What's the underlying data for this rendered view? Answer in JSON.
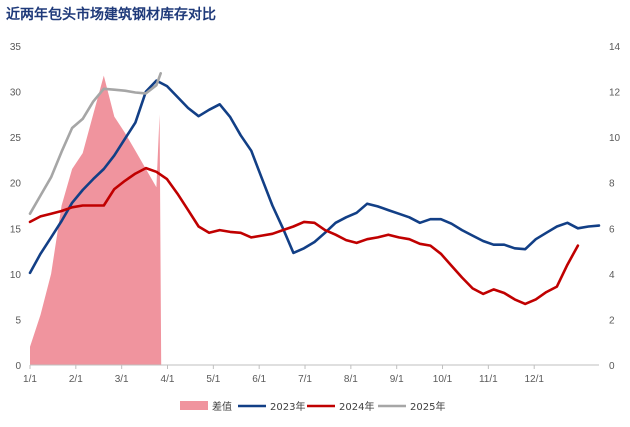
{
  "chart_data": {
    "type": "line",
    "title": "近两年包头市场建筑钢材库存对比",
    "x_tick_labels": [
      "1/1",
      "2/1",
      "3/1",
      "4/1",
      "5/1",
      "6/1",
      "7/1",
      "8/1",
      "9/1",
      "10/1",
      "11/1",
      "12/1"
    ],
    "ylim": [
      0,
      35
    ],
    "yticks": [
      0,
      5,
      10,
      15,
      20,
      25,
      30,
      35
    ],
    "y2lim": [
      0,
      14
    ],
    "y2ticks": [
      0,
      2,
      4,
      6,
      8,
      10,
      12,
      14
    ],
    "grid": false,
    "legend_position": "bottom",
    "x_unit": "week",
    "series": [
      {
        "name": "差值",
        "kind": "area",
        "axis": "right",
        "color": "#f0949e",
        "x": [
          0,
          1,
          2,
          3,
          4,
          5,
          6,
          7,
          8,
          9,
          10,
          11,
          12,
          12.3,
          12.45
        ],
        "values": [
          0.8,
          2.2,
          4.0,
          7.0,
          8.6,
          9.3,
          11.0,
          12.7,
          10.9,
          10.2,
          9.4,
          8.6,
          7.8,
          11.0,
          0
        ]
      },
      {
        "name": "2023年",
        "kind": "line",
        "axis": "left",
        "color": "#123f86",
        "x": [
          0,
          1,
          2,
          3,
          4,
          5,
          6,
          7,
          8,
          9,
          10,
          11,
          12,
          13,
          14,
          15,
          16,
          17,
          18,
          19,
          20,
          21,
          22,
          23,
          24,
          25,
          26,
          27,
          28,
          29,
          30,
          31,
          32,
          33,
          34,
          35,
          36,
          37,
          38,
          39,
          40,
          41,
          42,
          43,
          44,
          45,
          46,
          47,
          48,
          49,
          50,
          51,
          52,
          53,
          54
        ],
        "values": [
          10.1,
          12.2,
          14.0,
          15.8,
          17.8,
          19.2,
          20.4,
          21.5,
          23.0,
          24.8,
          26.6,
          30.0,
          31.2,
          30.6,
          29.4,
          28.2,
          27.3,
          28.0,
          28.6,
          27.2,
          25.2,
          23.5,
          20.5,
          17.5,
          15.0,
          12.3,
          12.8,
          13.5,
          14.5,
          15.6,
          16.2,
          16.7,
          17.7,
          17.4,
          17.0,
          16.6,
          16.2,
          15.6,
          16.0,
          16.0,
          15.5,
          14.8,
          14.2,
          13.6,
          13.2,
          13.2,
          12.8,
          12.7,
          13.8,
          14.5,
          15.2,
          15.6,
          15.0,
          15.2,
          15.3
        ]
      },
      {
        "name": "2024年",
        "kind": "line",
        "axis": "left",
        "color": "#c00000",
        "x": [
          0,
          1,
          2,
          3,
          4,
          5,
          6,
          7,
          8,
          9,
          10,
          11,
          12,
          13,
          14,
          15,
          16,
          17,
          18,
          19,
          20,
          21,
          22,
          23,
          24,
          25,
          26,
          27,
          28,
          29,
          30,
          31,
          32,
          33,
          34,
          35,
          36,
          37,
          38,
          39,
          40,
          41,
          42,
          43,
          44,
          45,
          46,
          47,
          48,
          49,
          50,
          51,
          52,
          53,
          54
        ],
        "values": [
          15.7,
          16.3,
          16.6,
          16.9,
          17.3,
          17.5,
          17.5,
          17.5,
          19.3,
          20.2,
          21.0,
          21.6,
          21.2,
          20.4,
          18.8,
          17.0,
          15.2,
          14.5,
          14.8,
          14.6,
          14.5,
          14.0,
          14.2,
          14.4,
          14.8,
          15.2,
          15.7,
          15.6,
          14.8,
          14.3,
          13.7,
          13.4,
          13.8,
          14.0,
          14.3,
          14.0,
          13.8,
          13.3,
          13.1,
          12.2,
          10.9,
          9.6,
          8.4,
          7.8,
          8.3,
          7.9,
          7.2,
          6.7,
          7.2,
          8.0,
          8.6,
          11.0,
          13.1,
          null,
          null
        ]
      },
      {
        "name": "2025年",
        "kind": "line",
        "axis": "left",
        "color": "#a6a6a6",
        "x": [
          0,
          1,
          2,
          3,
          4,
          5,
          6,
          7,
          8,
          9,
          10,
          11,
          12,
          12.4
        ],
        "values": [
          16.6,
          18.6,
          20.6,
          23.4,
          26.0,
          27.0,
          28.9,
          30.3,
          30.2,
          30.1,
          29.9,
          29.8,
          30.7,
          32.0
        ]
      }
    ]
  }
}
